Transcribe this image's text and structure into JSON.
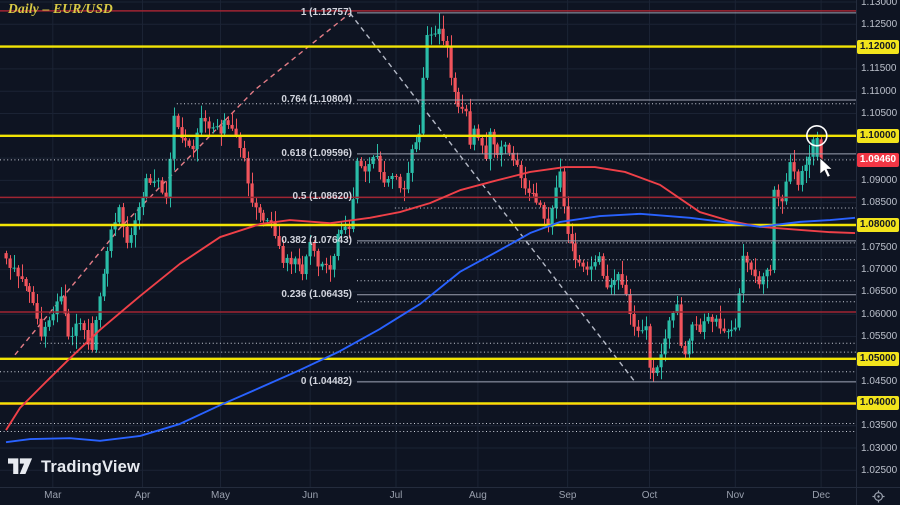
{
  "header": {
    "title": "Daily – EUR/USD"
  },
  "watermark": {
    "brand": "TradingView"
  },
  "colors": {
    "background": "#0e1422",
    "grid": "#1b2334",
    "candle_up": "#2abda8",
    "candle_down": "#f1545c",
    "ma_fast": "#ef4048",
    "ma_slow": "#2962ff",
    "yellow_line": "#f2e405",
    "red_line": "#a02532",
    "dotted_line": "#dde0ea",
    "fib_line": "#9da2b2",
    "fib_label": "#d2d5de",
    "dash_pink": "#e57d87",
    "dash_gray": "#b4b9c6",
    "badge_yellow": "#f2e41c",
    "badge_red": "#f23645",
    "axis_text": "#bcc1cc",
    "title_text": "#d9cb45"
  },
  "price_axis": {
    "labels": [
      {
        "text": "1.13000",
        "price": 1.13
      },
      {
        "text": "1.12500",
        "price": 1.125
      },
      {
        "text": "1.11500",
        "price": 1.115
      },
      {
        "text": "1.11000",
        "price": 1.11
      },
      {
        "text": "1.10500",
        "price": 1.105
      },
      {
        "text": "1.09000",
        "price": 1.09
      },
      {
        "text": "1.08500",
        "price": 1.085
      },
      {
        "text": "1.07500",
        "price": 1.075
      },
      {
        "text": "1.07000",
        "price": 1.07
      },
      {
        "text": "1.06500",
        "price": 1.065
      },
      {
        "text": "1.06000",
        "price": 1.06
      },
      {
        "text": "1.05500",
        "price": 1.055
      },
      {
        "text": "1.04500",
        "price": 1.045
      },
      {
        "text": "1.03500",
        "price": 1.035
      },
      {
        "text": "1.03000",
        "price": 1.03
      },
      {
        "text": "1.02500",
        "price": 1.025
      }
    ]
  },
  "badges": [
    {
      "text": "1.12000",
      "price": 1.12,
      "style": "yellow"
    },
    {
      "text": "1.10000",
      "price": 1.1,
      "style": "yellow"
    },
    {
      "text": "1.09460",
      "price": 1.0946,
      "style": "red"
    },
    {
      "text": "1.08000",
      "price": 1.08,
      "style": "yellow"
    },
    {
      "text": "1.05000",
      "price": 1.05,
      "style": "yellow"
    },
    {
      "text": "1.04000",
      "price": 1.04,
      "style": "yellow"
    }
  ],
  "chart_data": {
    "type": "candlestick",
    "symbol": "EUR/USD",
    "timeframe": "Daily",
    "last_price": 1.0946,
    "y_axis": {
      "min": 1.025,
      "max": 1.13,
      "step": 0.005
    },
    "x_axis": {
      "months": [
        {
          "label": "Mar",
          "i": 12
        },
        {
          "label": "Apr",
          "i": 35
        },
        {
          "label": "May",
          "i": 55
        },
        {
          "label": "Jun",
          "i": 78
        },
        {
          "label": "Jul",
          "i": 100
        },
        {
          "label": "Aug",
          "i": 121
        },
        {
          "label": "Sep",
          "i": 144
        },
        {
          "label": "Oct",
          "i": 165
        },
        {
          "label": "Nov",
          "i": 187
        },
        {
          "label": "Dec",
          "i": 209
        }
      ]
    },
    "fib_levels": [
      {
        "label": "1 (1.12757)",
        "price": 1.12757
      },
      {
        "label": "0.764 (1.10804)",
        "price": 1.10804
      },
      {
        "label": "0.618 (1.09596)",
        "price": 1.09596
      },
      {
        "label": "0.5 (1.08620)",
        "price": 1.0862
      },
      {
        "label": "0.382 (1.07643)",
        "price": 1.07643
      },
      {
        "label": "0.236 (1.06435)",
        "price": 1.06435
      },
      {
        "label": "0 (1.04482)",
        "price": 1.04482
      }
    ],
    "yellow_levels": [
      1.12,
      1.1,
      1.08,
      1.05,
      1.04
    ],
    "red_levels": [
      1.128,
      1.0862,
      1.0605,
      1.0398
    ],
    "dotted_levels": [
      {
        "price": 1.1072,
        "from": 43.8
      },
      {
        "price": 1.0946,
        "from": 0
      },
      {
        "price": 1.0838,
        "from": 99.7
      },
      {
        "price": 1.076,
        "from": 90
      },
      {
        "price": 1.0722,
        "from": 90
      },
      {
        "price": 1.0675,
        "from": 90
      },
      {
        "price": 1.0628,
        "from": 90
      },
      {
        "price": 1.0535,
        "from": 8.7
      },
      {
        "price": 1.0515,
        "from": 16.4
      },
      {
        "price": 1.0471,
        "from": 0
      },
      {
        "price": 1.0355,
        "from": 0
      },
      {
        "price": 1.0337,
        "from": 0
      }
    ],
    "trendlines": [
      {
        "name": "ascending-dashed",
        "color": "pink",
        "points": [
          [
            2.3,
            1.0509
          ],
          [
            29.2,
            1.0793
          ],
          [
            63.8,
            1.1103
          ],
          [
            88.2,
            1.1275
          ]
        ]
      },
      {
        "name": "descending-dashed",
        "color": "gray",
        "points": [
          [
            88.2,
            1.1275
          ],
          [
            161.3,
            1.0448
          ]
        ]
      }
    ],
    "moving_averages": [
      {
        "name": "ma-fast-red",
        "points": [
          [
            0,
            1.034
          ],
          [
            3.6,
            1.039
          ],
          [
            10,
            1.0446
          ],
          [
            15.9,
            1.0497
          ],
          [
            24.1,
            1.0565
          ],
          [
            34.4,
            1.0641
          ],
          [
            44.6,
            1.0713
          ],
          [
            54.9,
            1.0773
          ],
          [
            65.1,
            1.0802
          ],
          [
            72.8,
            1.0811
          ],
          [
            83.1,
            1.0804
          ],
          [
            93.3,
            1.0816
          ],
          [
            101,
            1.0829
          ],
          [
            108.7,
            1.0849
          ],
          [
            116.4,
            1.0878
          ],
          [
            125.4,
            1.0899
          ],
          [
            134.4,
            1.0919
          ],
          [
            143.3,
            1.093
          ],
          [
            151,
            1.093
          ],
          [
            158.7,
            1.0919
          ],
          [
            167.7,
            1.089
          ],
          [
            177.9,
            1.0829
          ],
          [
            185.6,
            1.0809
          ],
          [
            193.3,
            1.0796
          ],
          [
            203.6,
            1.0789
          ],
          [
            211.3,
            1.0784
          ],
          [
            217.7,
            1.0782
          ]
        ]
      },
      {
        "name": "ma-slow-blue",
        "points": [
          [
            0,
            1.0313
          ],
          [
            6.2,
            1.032
          ],
          [
            16.4,
            1.0322
          ],
          [
            24.1,
            1.0316
          ],
          [
            34.4,
            1.0327
          ],
          [
            44.6,
            1.0354
          ],
          [
            54.9,
            1.0396
          ],
          [
            65.1,
            1.0435
          ],
          [
            75.4,
            1.0475
          ],
          [
            85.6,
            1.0517
          ],
          [
            95.9,
            1.0567
          ],
          [
            106.2,
            1.0623
          ],
          [
            116.4,
            1.0695
          ],
          [
            126.7,
            1.0744
          ],
          [
            134.4,
            1.0782
          ],
          [
            142.1,
            1.0807
          ],
          [
            152.3,
            1.082
          ],
          [
            162.6,
            1.0825
          ],
          [
            175.4,
            1.0816
          ],
          [
            185.6,
            1.0805
          ],
          [
            193.3,
            1.0796
          ],
          [
            203.6,
            1.0807
          ],
          [
            211.3,
            1.0811
          ],
          [
            217.7,
            1.0816
          ]
        ]
      }
    ],
    "candles": {
      "count": 210,
      "anchors": [
        [
          0,
          1.0725
        ],
        [
          3,
          1.0685
        ],
        [
          6,
          1.065
        ],
        [
          9,
          1.055
        ],
        [
          12,
          1.06
        ],
        [
          14,
          1.064
        ],
        [
          16,
          1.055
        ],
        [
          19,
          1.058
        ],
        [
          22,
          1.052
        ],
        [
          24,
          1.064
        ],
        [
          27,
          1.079
        ],
        [
          29,
          1.084
        ],
        [
          31,
          1.076
        ],
        [
          34,
          1.084
        ],
        [
          36,
          1.0905
        ],
        [
          39,
          1.09
        ],
        [
          41,
          1.086
        ],
        [
          43,
          1.1045
        ],
        [
          45,
          1.0995
        ],
        [
          48,
          1.097
        ],
        [
          50,
          1.104
        ],
        [
          53,
          1.1019
        ],
        [
          55,
          1.1005
        ],
        [
          56,
          1.1035
        ],
        [
          58,
          1.1016
        ],
        [
          61,
          1.095
        ],
        [
          63,
          1.085
        ],
        [
          66,
          1.081
        ],
        [
          68,
          1.0805
        ],
        [
          71,
          1.0715
        ],
        [
          74,
          1.0725
        ],
        [
          76,
          1.069
        ],
        [
          78,
          1.0762
        ],
        [
          80,
          1.0707
        ],
        [
          83,
          1.07
        ],
        [
          85,
          1.078
        ],
        [
          88,
          1.0791
        ],
        [
          90,
          1.0944
        ],
        [
          92,
          1.092
        ],
        [
          95,
          1.0955
        ],
        [
          97,
          1.0895
        ],
        [
          99,
          1.091
        ],
        [
          102,
          1.088
        ],
        [
          104,
          1.097
        ],
        [
          106,
          1.1005
        ],
        [
          107,
          1.113
        ],
        [
          108,
          1.1226
        ],
        [
          109,
          1.1227
        ],
        [
          111,
          1.124
        ],
        [
          113,
          1.1201
        ],
        [
          114,
          1.113
        ],
        [
          116,
          1.1065
        ],
        [
          118,
          1.1055
        ],
        [
          119,
          1.098
        ],
        [
          120,
          1.1016
        ],
        [
          121,
          1.0995
        ],
        [
          123,
          1.0948
        ],
        [
          124,
          1.1009
        ],
        [
          126,
          1.0957
        ],
        [
          128,
          1.098
        ],
        [
          130,
          1.0945
        ],
        [
          132,
          1.0905
        ],
        [
          134,
          1.0872
        ],
        [
          137,
          1.0845
        ],
        [
          139,
          1.0795
        ],
        [
          142,
          1.092
        ],
        [
          143,
          1.0842
        ],
        [
          144,
          1.078
        ],
        [
          146,
          1.0722
        ],
        [
          149,
          1.07
        ],
        [
          152,
          1.073
        ],
        [
          154,
          1.066
        ],
        [
          157,
          1.069
        ],
        [
          159,
          1.0645
        ],
        [
          161,
          1.0572
        ],
        [
          163,
          1.0564
        ],
        [
          164,
          1.0573
        ],
        [
          165,
          1.048
        ],
        [
          166,
          1.0468
        ],
        [
          168,
          1.051
        ],
        [
          170,
          1.0586
        ],
        [
          172,
          1.0622
        ],
        [
          173,
          1.0529
        ],
        [
          174,
          1.051
        ],
        [
          176,
          1.0577
        ],
        [
          178,
          1.056
        ],
        [
          180,
          1.0594
        ],
        [
          182,
          1.059
        ],
        [
          183,
          1.0568
        ],
        [
          185,
          1.0562
        ],
        [
          187,
          1.057
        ],
        [
          189,
          1.0731
        ],
        [
          191,
          1.07
        ],
        [
          193,
          1.0667
        ],
        [
          194,
          1.0685
        ],
        [
          196,
          1.0699
        ],
        [
          197,
          1.0879
        ],
        [
          199,
          1.0853
        ],
        [
          201,
          1.0941
        ],
        [
          203,
          1.089
        ],
        [
          205,
          1.0935
        ],
        [
          206,
          1.0953
        ],
        [
          207,
          1.0992
        ],
        [
          208,
          1.0995
        ],
        [
          209,
          1.0946
        ]
      ],
      "overrides": {
        "22": {
          "o": 1.058,
          "h": 1.0595,
          "l": 1.0516,
          "c": 1.052
        },
        "108": {
          "o": 1.113,
          "h": 1.1246,
          "l": 1.1125,
          "c": 1.1226
        },
        "111": {
          "o": 1.1228,
          "h": 1.1276,
          "l": 1.1205,
          "c": 1.124
        },
        "166": {
          "o": 1.048,
          "h": 1.0499,
          "l": 1.0448,
          "c": 1.0468
        },
        "197": {
          "o": 1.0699,
          "h": 1.0887,
          "l": 1.0692,
          "c": 1.0879
        },
        "208": {
          "o": 1.0953,
          "h": 1.1009,
          "l": 1.0945,
          "c": 1.0995
        },
        "209": {
          "o": 1.0992,
          "h": 1.0997,
          "l": 1.0921,
          "c": 1.0946
        }
      }
    },
    "markers": {
      "circle": {
        "i": 207.9,
        "price": 1.1
      },
      "cursor": {
        "i": 208.7,
        "price": 1.0951
      }
    }
  }
}
